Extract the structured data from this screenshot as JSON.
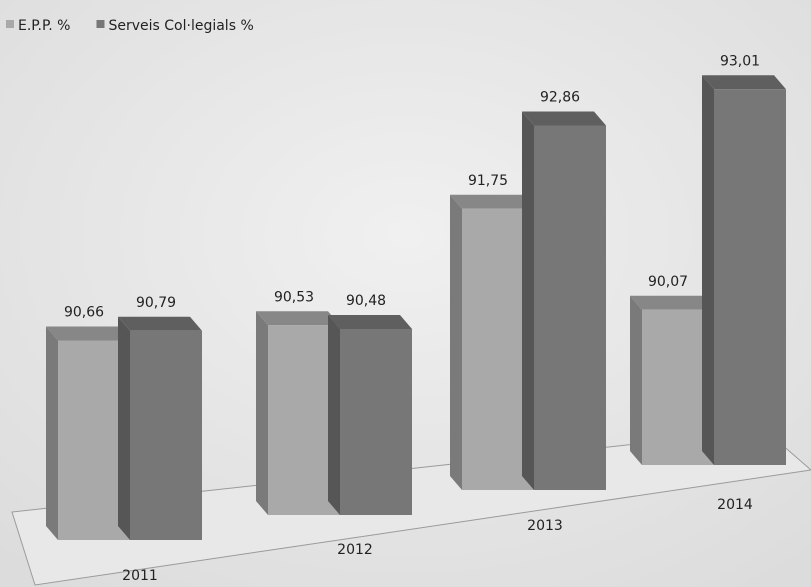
{
  "chart_data": {
    "type": "bar3d",
    "categories": [
      "2011",
      "2012",
      "2013",
      "2014"
    ],
    "series": [
      {
        "name": "E.P.P. %",
        "color": "#a9a9a9",
        "values": [
          90.66,
          90.53,
          91.75,
          90.07
        ],
        "value_labels": [
          "90,66",
          "90,53",
          "91,75",
          "90,07"
        ]
      },
      {
        "name": "Serveis Col·legials %",
        "color": "#777777",
        "values": [
          90.79,
          90.48,
          92.86,
          93.01
        ],
        "value_labels": [
          "90,79",
          "90,48",
          "92,86",
          "93,01"
        ]
      }
    ],
    "ylim": [
      88,
      94
    ],
    "legend": "top-left"
  }
}
